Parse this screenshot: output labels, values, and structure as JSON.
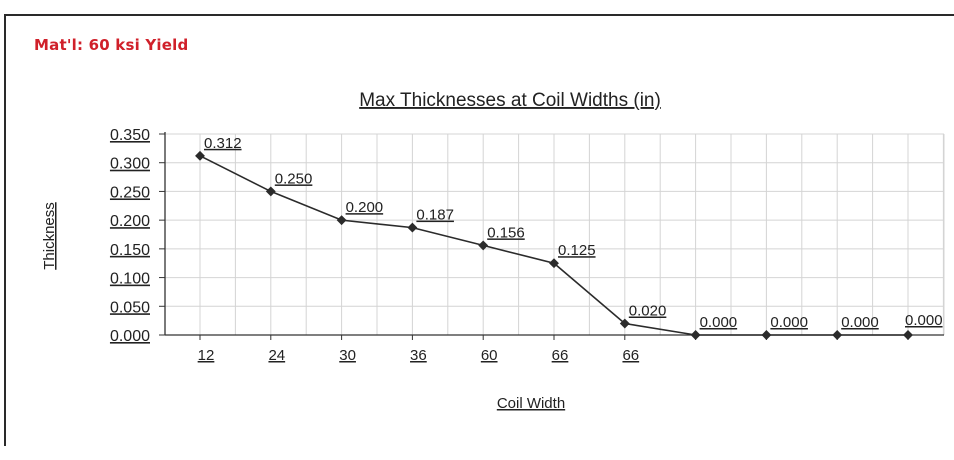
{
  "header": {
    "material_label": "Mat'l: 60 ksi Yield"
  },
  "chart_data": {
    "type": "line",
    "title": "Max Thicknesses at Coil Widths (in)",
    "xlabel": "Coil Width",
    "ylabel": "Thickness",
    "categories": [
      "12",
      "24",
      "30",
      "36",
      "60",
      "66",
      "66",
      "",
      "",
      "",
      ""
    ],
    "values": [
      0.312,
      0.25,
      0.2,
      0.187,
      0.156,
      0.125,
      0.02,
      0.0,
      0.0,
      0.0,
      0.0
    ],
    "data_labels": [
      "0.312",
      "0.250",
      "0.200",
      "0.187",
      "0.156",
      "0.125",
      "0.020",
      "0.000",
      "0.000",
      "0.000",
      "0.000"
    ],
    "ylim": [
      0,
      0.35
    ],
    "y_ticks": [
      "0.000",
      "0.050",
      "0.100",
      "0.150",
      "0.200",
      "0.250",
      "0.300",
      "0.350"
    ],
    "y_tick_values": [
      0,
      0.05,
      0.1,
      0.15,
      0.2,
      0.25,
      0.3,
      0.35
    ],
    "grid": true,
    "legend": "none",
    "colors": {
      "line": "#2b2b2b",
      "grid": "#d4d4d4",
      "accent": "#d0202a"
    }
  }
}
